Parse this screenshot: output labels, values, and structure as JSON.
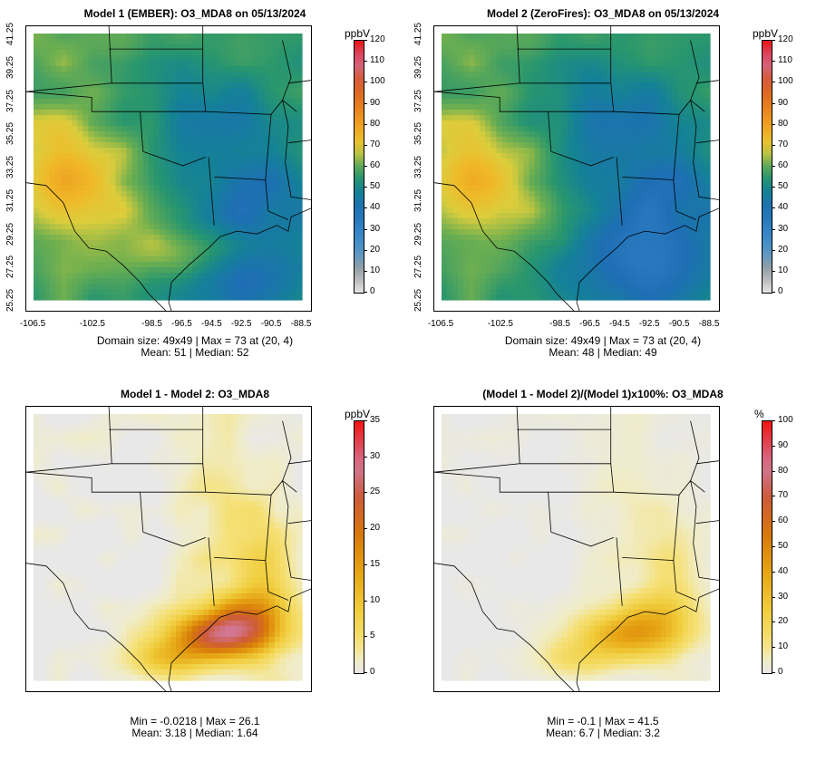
{
  "panels": [
    {
      "title": "Model 1 (EMBER): O3_MDA8 on 05/13/2024",
      "stats": [
        "Domain size: 49x49 | Max = 73 at (20, 4)",
        "Mean: 51 |  Median: 52"
      ],
      "field": "model1",
      "colorbar": {
        "unit": "ppbV",
        "ticks": [
          "120",
          "110",
          "100",
          "90",
          "80",
          "70",
          "60",
          "50",
          "40",
          "30",
          "20",
          "10",
          "0"
        ],
        "max": 120,
        "scale": "o3"
      },
      "has_axes": true
    },
    {
      "title": "Model 2 (ZeroFires): O3_MDA8 on 05/13/2024",
      "stats": [
        "Domain size: 49x49 | Max = 73 at (20, 4)",
        "Mean: 48 |  Median: 49"
      ],
      "field": "model2",
      "colorbar": {
        "unit": "ppbV",
        "ticks": [
          "120",
          "110",
          "100",
          "90",
          "80",
          "70",
          "60",
          "50",
          "40",
          "30",
          "20",
          "10",
          "0"
        ],
        "max": 120,
        "scale": "o3"
      },
      "has_axes": true
    },
    {
      "title": "Model 1 - Model 2: O3_MDA8",
      "stats": [
        "Min = -0.0218 | Max = 26.1",
        "Mean: 3.18 |  Median: 1.64"
      ],
      "field": "diff",
      "colorbar": {
        "unit": "ppbV",
        "ticks": [
          "35",
          "30",
          "25",
          "20",
          "15",
          "10",
          "5",
          "0"
        ],
        "max": 35,
        "scale": "diff"
      },
      "has_axes": false
    },
    {
      "title": "(Model 1 - Model 2)/(Model 1)x100%: O3_MDA8",
      "stats": [
        "Min = -0.1 | Max = 41.5",
        "Mean: 6.7 |  Median: 3.2"
      ],
      "field": "pct",
      "colorbar": {
        "unit": "%",
        "ticks": [
          "100",
          "90",
          "80",
          "70",
          "60",
          "50",
          "40",
          "30",
          "20",
          "10",
          "0"
        ],
        "max": 100,
        "scale": "diff"
      },
      "has_axes": false
    }
  ],
  "axes": {
    "y_ticks": [
      "41.25",
      "39.25",
      "37.25",
      "35.25",
      "33.25",
      "31.25",
      "29.25",
      "27.25",
      "25.25"
    ],
    "x_ticks": [
      "-106.5",
      "-102.5",
      "-98.5",
      "-96.5",
      "-94.5",
      "-92.5",
      "-90.5",
      "-88.5"
    ]
  },
  "grid": {
    "nx": 49,
    "ny": 49,
    "lon_min": -106.5,
    "lon_max": -88.5,
    "lat_min": 25.25,
    "lat_max": 41.25
  }
}
